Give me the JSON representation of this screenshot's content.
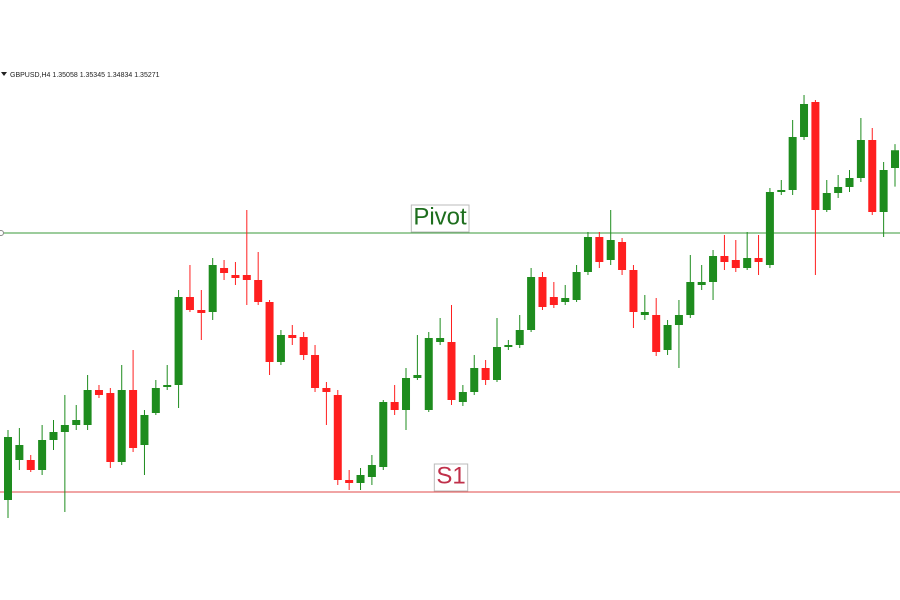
{
  "chart_data": {
    "type": "candlestick",
    "title": "GBPUSD,H4",
    "quote": [
      1.35058,
      1.35345,
      1.34834,
      1.35271
    ],
    "up_color": "#1e8c1e",
    "down_color": "#ff1f1f",
    "ylim": [
      1.29874,
      1.37074
    ],
    "open": [
      1.31074,
      1.31554,
      1.31554,
      1.31434,
      1.31794,
      1.3189,
      1.31974,
      1.31974,
      1.32394,
      1.32358,
      1.3153,
      1.32394,
      1.31734,
      1.32118,
      1.3243,
      1.32454,
      1.3351,
      1.33354,
      1.3333,
      1.33858,
      1.33774,
      1.33774,
      1.33714,
      1.3345,
      1.3273,
      1.33054,
      1.3303,
      1.32814,
      1.32418,
      1.32334,
      1.31314,
      1.31278,
      1.3135,
      1.3147,
      1.3225,
      1.32154,
      1.32538,
      1.32154,
      1.3297,
      1.3297,
      1.3225,
      1.3237,
      1.32658,
      1.32514,
      1.3291,
      1.32934,
      1.33114,
      1.3375,
      1.3351,
      1.3345,
      1.33474,
      1.3381,
      1.3423,
      1.33954,
      1.3417,
      1.33834,
      1.33294,
      1.33294,
      1.32874,
      1.33174,
      1.33294,
      1.33654,
      1.3369,
      1.34002,
      1.33954,
      1.33858,
      1.33978,
      1.33894,
      1.3477,
      1.34794,
      1.3543,
      1.3585,
      1.34554,
      1.34758,
      1.3483,
      1.34938,
      1.35394,
      1.3453,
      1.35058
    ],
    "high": [
      1.31914,
      1.31938,
      1.31614,
      1.31974,
      1.32034,
      1.32334,
      1.32214,
      1.32574,
      1.32454,
      1.32418,
      1.32694,
      1.32874,
      1.32154,
      1.32514,
      1.32694,
      1.33594,
      1.33894,
      1.33594,
      1.33978,
      1.33954,
      1.3393,
      1.34554,
      1.3405,
      1.33474,
      1.33114,
      1.33174,
      1.3309,
      1.32934,
      1.3249,
      1.32394,
      1.31434,
      1.31458,
      1.31614,
      1.32274,
      1.32454,
      1.32658,
      1.33054,
      1.3309,
      1.33258,
      1.33414,
      1.32454,
      1.32814,
      1.32754,
      1.33258,
      1.32994,
      1.33294,
      1.33858,
      1.3381,
      1.3369,
      1.33654,
      1.33894,
      1.3429,
      1.3429,
      1.34554,
      1.34218,
      1.33894,
      1.33534,
      1.33498,
      1.33234,
      1.33474,
      1.34014,
      1.33894,
      1.34074,
      1.34254,
      1.34194,
      1.3429,
      1.34254,
      1.34818,
      1.34914,
      1.35634,
      1.35934,
      1.35874,
      1.34914,
      1.34974,
      1.35034,
      1.35658,
      1.35538,
      1.3513,
      1.35345
    ],
    "low": [
      1.30858,
      1.31434,
      1.3141,
      1.31374,
      1.31674,
      1.3093,
      1.31914,
      1.31914,
      1.32298,
      1.31458,
      1.31494,
      1.3165,
      1.31374,
      1.32094,
      1.32394,
      1.32178,
      1.3333,
      1.32994,
      1.33234,
      1.33714,
      1.33654,
      1.33414,
      1.33414,
      1.32574,
      1.32694,
      1.32934,
      1.32754,
      1.3237,
      1.31974,
      1.31254,
      1.31194,
      1.31194,
      1.31254,
      1.31434,
      1.32094,
      1.31914,
      1.32514,
      1.3213,
      1.32934,
      1.32214,
      1.32202,
      1.32334,
      1.32454,
      1.3249,
      1.32874,
      1.32898,
      1.3309,
      1.33354,
      1.33378,
      1.33414,
      1.3345,
      1.33774,
      1.33858,
      1.33894,
      1.33774,
      1.33138,
      1.33234,
      1.32802,
      1.32814,
      1.32658,
      1.33258,
      1.33594,
      1.33474,
      1.33834,
      1.3381,
      1.33834,
      1.33774,
      1.33858,
      1.34734,
      1.34734,
      1.35394,
      1.33774,
      1.3453,
      1.34698,
      1.3477,
      1.3489,
      1.34494,
      1.3423,
      1.34834
    ],
    "close": [
      1.3183,
      1.31734,
      1.31434,
      1.31794,
      1.3189,
      1.31974,
      1.32034,
      1.32394,
      1.32334,
      1.3153,
      1.32394,
      1.31698,
      1.32094,
      1.32418,
      1.32454,
      1.3351,
      1.33354,
      1.33318,
      1.33894,
      1.33798,
      1.33738,
      1.33714,
      1.3345,
      1.3273,
      1.33054,
      1.33018,
      1.32814,
      1.32418,
      1.3237,
      1.31314,
      1.31278,
      1.31374,
      1.31494,
      1.3225,
      1.32154,
      1.32538,
      1.32574,
      1.33018,
      1.33018,
      1.32274,
      1.3237,
      1.32658,
      1.32514,
      1.3291,
      1.32934,
      1.33114,
      1.3375,
      1.3339,
      1.33414,
      1.33498,
      1.3381,
      1.3423,
      1.3393,
      1.34194,
      1.33834,
      1.3333,
      1.3333,
      1.3285,
      1.33174,
      1.33294,
      1.3369,
      1.3369,
      1.34002,
      1.3393,
      1.33858,
      1.33978,
      1.3393,
      1.3477,
      1.34794,
      1.3543,
      1.35826,
      1.34554,
      1.34758,
      1.3483,
      1.34938,
      1.35394,
      1.3453,
      1.35034,
      1.35271
    ],
    "levels": [
      {
        "label": "Pivot",
        "value": 1.34278,
        "color": "#3a9a3a",
        "text_color": "#1e6e1e"
      },
      {
        "label": "S1",
        "value": 1.3117,
        "color": "#e04848",
        "text_color": "#c0304a"
      }
    ]
  }
}
